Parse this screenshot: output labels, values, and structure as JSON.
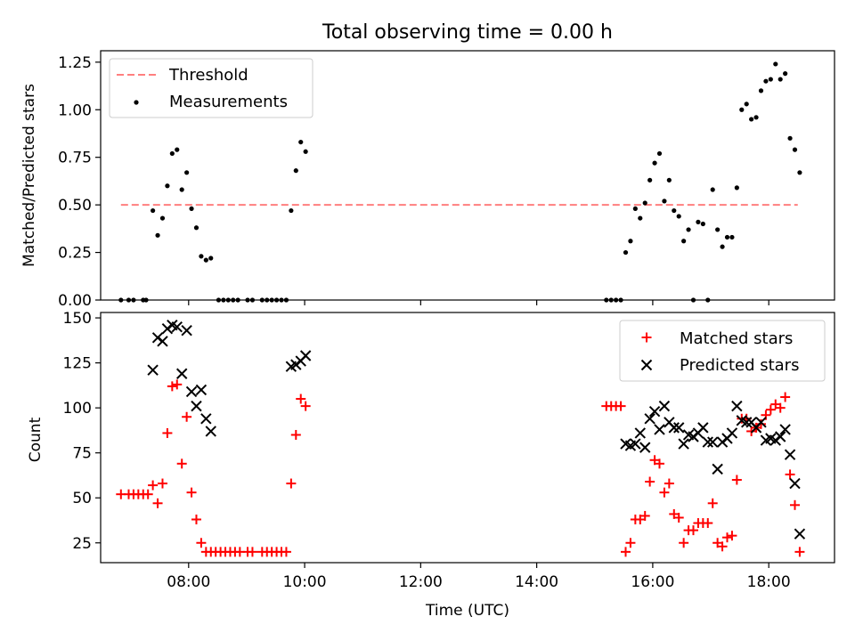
{
  "title": "Total observing time = 0.00 h",
  "colors": {
    "threshold": "#ff7f7f",
    "measurement": "#000000",
    "matched": "#ff0000",
    "predicted": "#000000",
    "axes": "#000000"
  },
  "chart_data": [
    {
      "type": "scatter",
      "x_format": "time HH:MM",
      "ylabel": "Matched/Predicted stars",
      "xlim": [
        "06:29",
        "19:08"
      ],
      "ylim": [
        0,
        1.31
      ],
      "yticks": [
        0.0,
        0.25,
        0.5,
        0.75,
        1.0,
        1.25
      ],
      "ytick_labels": [
        "0.00",
        "0.25",
        "0.50",
        "0.75",
        "1.00",
        "1.25"
      ],
      "xticks": [
        "08:00",
        "10:00",
        "12:00",
        "14:00",
        "16:00",
        "18:00"
      ],
      "legend_position": "top-left",
      "legend": [
        "Threshold",
        "Measurements"
      ],
      "threshold": {
        "name": "Threshold",
        "y": 0.5,
        "x_range": [
          "06:50",
          "18:30"
        ],
        "style": "dashed"
      },
      "series": [
        {
          "name": "Measurements",
          "marker": "dot",
          "points": [
            [
              "06:50",
              0
            ],
            [
              "06:58",
              0
            ],
            [
              "07:03",
              0
            ],
            [
              "07:13",
              0
            ],
            [
              "07:16",
              0
            ],
            [
              "07:23",
              0.47
            ],
            [
              "07:28",
              0.34
            ],
            [
              "07:33",
              0.43
            ],
            [
              "07:38",
              0.6
            ],
            [
              "07:43",
              0.77
            ],
            [
              "07:48",
              0.79
            ],
            [
              "07:53",
              0.58
            ],
            [
              "07:58",
              0.67
            ],
            [
              "08:03",
              0.48
            ],
            [
              "08:08",
              0.38
            ],
            [
              "08:13",
              0.23
            ],
            [
              "08:18",
              0.21
            ],
            [
              "08:23",
              0.22
            ],
            [
              "08:31",
              0
            ],
            [
              "08:36",
              0
            ],
            [
              "08:41",
              0
            ],
            [
              "08:46",
              0
            ],
            [
              "08:51",
              0
            ],
            [
              "09:01",
              0
            ],
            [
              "09:06",
              0
            ],
            [
              "09:16",
              0
            ],
            [
              "09:21",
              0
            ],
            [
              "09:26",
              0
            ],
            [
              "09:31",
              0
            ],
            [
              "09:36",
              0
            ],
            [
              "09:41",
              0
            ],
            [
              "09:46",
              0.47
            ],
            [
              "09:51",
              0.68
            ],
            [
              "09:56",
              0.83
            ],
            [
              "10:01",
              0.78
            ],
            [
              "15:12",
              0
            ],
            [
              "15:17",
              0
            ],
            [
              "15:22",
              0
            ],
            [
              "15:27",
              0
            ],
            [
              "15:32",
              0.25
            ],
            [
              "15:37",
              0.31
            ],
            [
              "15:42",
              0.48
            ],
            [
              "15:47",
              0.43
            ],
            [
              "15:52",
              0.51
            ],
            [
              "15:57",
              0.63
            ],
            [
              "16:02",
              0.72
            ],
            [
              "16:07",
              0.77
            ],
            [
              "16:12",
              0.52
            ],
            [
              "16:17",
              0.63
            ],
            [
              "16:22",
              0.47
            ],
            [
              "16:27",
              0.44
            ],
            [
              "16:32",
              0.31
            ],
            [
              "16:37",
              0.37
            ],
            [
              "16:42",
              0
            ],
            [
              "16:47",
              0.41
            ],
            [
              "16:52",
              0.4
            ],
            [
              "16:57",
              0
            ],
            [
              "17:02",
              0.58
            ],
            [
              "17:07",
              0.37
            ],
            [
              "17:12",
              0.28
            ],
            [
              "17:17",
              0.33
            ],
            [
              "17:22",
              0.33
            ],
            [
              "17:27",
              0.59
            ],
            [
              "17:32",
              1.0
            ],
            [
              "17:37",
              1.03
            ],
            [
              "17:42",
              0.95
            ],
            [
              "17:47",
              0.96
            ],
            [
              "17:52",
              1.1
            ],
            [
              "17:57",
              1.15
            ],
            [
              "18:02",
              1.16
            ],
            [
              "18:07",
              1.24
            ],
            [
              "18:12",
              1.16
            ],
            [
              "18:17",
              1.19
            ],
            [
              "18:22",
              0.85
            ],
            [
              "18:27",
              0.79
            ],
            [
              "18:32",
              0.67
            ]
          ]
        }
      ]
    },
    {
      "type": "scatter",
      "x_format": "time HH:MM",
      "xlabel": "Time (UTC)",
      "ylabel": "Count",
      "xlim": [
        "06:29",
        "19:08"
      ],
      "ylim": [
        14,
        153
      ],
      "yticks": [
        25,
        50,
        75,
        100,
        125,
        150
      ],
      "ytick_labels": [
        "25",
        "50",
        "75",
        "100",
        "125",
        "150"
      ],
      "xticks": [
        "08:00",
        "10:00",
        "12:00",
        "14:00",
        "16:00",
        "18:00"
      ],
      "xtick_labels": [
        "08:00",
        "10:00",
        "12:00",
        "14:00",
        "16:00",
        "18:00"
      ],
      "legend_position": "top-right",
      "legend": [
        "Matched stars",
        "Predicted stars"
      ],
      "series": [
        {
          "name": "Matched stars",
          "marker": "plus",
          "points": [
            [
              "06:50",
              52
            ],
            [
              "06:58",
              52
            ],
            [
              "07:03",
              52
            ],
            [
              "07:08",
              52
            ],
            [
              "07:13",
              52
            ],
            [
              "07:18",
              52
            ],
            [
              "07:23",
              57
            ],
            [
              "07:28",
              47
            ],
            [
              "07:33",
              58
            ],
            [
              "07:38",
              86
            ],
            [
              "07:43",
              112
            ],
            [
              "07:48",
              113
            ],
            [
              "07:53",
              69
            ],
            [
              "07:58",
              95
            ],
            [
              "08:03",
              53
            ],
            [
              "08:08",
              38
            ],
            [
              "08:13",
              25
            ],
            [
              "08:18",
              20
            ],
            [
              "08:23",
              20
            ],
            [
              "08:28",
              20
            ],
            [
              "08:33",
              20
            ],
            [
              "08:38",
              20
            ],
            [
              "08:43",
              20
            ],
            [
              "08:48",
              20
            ],
            [
              "08:53",
              20
            ],
            [
              "09:01",
              20
            ],
            [
              "09:06",
              20
            ],
            [
              "09:16",
              20
            ],
            [
              "09:21",
              20
            ],
            [
              "09:26",
              20
            ],
            [
              "09:31",
              20
            ],
            [
              "09:36",
              20
            ],
            [
              "09:41",
              20
            ],
            [
              "09:46",
              58
            ],
            [
              "09:51",
              85
            ],
            [
              "09:56",
              105
            ],
            [
              "10:01",
              101
            ],
            [
              "15:12",
              101
            ],
            [
              "15:17",
              101
            ],
            [
              "15:22",
              101
            ],
            [
              "15:27",
              101
            ],
            [
              "15:32",
              20
            ],
            [
              "15:37",
              25
            ],
            [
              "15:42",
              38
            ],
            [
              "15:47",
              38
            ],
            [
              "15:52",
              40
            ],
            [
              "15:57",
              59
            ],
            [
              "16:02",
              71
            ],
            [
              "16:07",
              69
            ],
            [
              "16:12",
              53
            ],
            [
              "16:17",
              58
            ],
            [
              "16:22",
              41
            ],
            [
              "16:27",
              39
            ],
            [
              "16:32",
              25
            ],
            [
              "16:37",
              32
            ],
            [
              "16:42",
              32
            ],
            [
              "16:47",
              36
            ],
            [
              "16:52",
              36
            ],
            [
              "16:57",
              36
            ],
            [
              "17:02",
              47
            ],
            [
              "17:07",
              25
            ],
            [
              "17:12",
              23
            ],
            [
              "17:17",
              28
            ],
            [
              "17:22",
              29
            ],
            [
              "17:27",
              60
            ],
            [
              "17:32",
              94
            ],
            [
              "17:37",
              94
            ],
            [
              "17:42",
              87
            ],
            [
              "17:47",
              89
            ],
            [
              "17:52",
              91
            ],
            [
              "17:57",
              96
            ],
            [
              "18:02",
              99
            ],
            [
              "18:07",
              102
            ],
            [
              "18:12",
              100
            ],
            [
              "18:17",
              106
            ],
            [
              "18:22",
              63
            ],
            [
              "18:27",
              46
            ],
            [
              "18:32",
              20
            ]
          ]
        },
        {
          "name": "Predicted stars",
          "marker": "x",
          "points": [
            [
              "07:23",
              121
            ],
            [
              "07:28",
              139
            ],
            [
              "07:33",
              137
            ],
            [
              "07:38",
              144
            ],
            [
              "07:43",
              146
            ],
            [
              "07:48",
              145
            ],
            [
              "07:53",
              119
            ],
            [
              "07:58",
              143
            ],
            [
              "08:03",
              109
            ],
            [
              "08:08",
              101
            ],
            [
              "08:13",
              110
            ],
            [
              "08:18",
              94
            ],
            [
              "08:23",
              87
            ],
            [
              "09:46",
              123
            ],
            [
              "09:51",
              124
            ],
            [
              "09:56",
              126
            ],
            [
              "10:01",
              129
            ],
            [
              "15:32",
              80
            ],
            [
              "15:37",
              79
            ],
            [
              "15:42",
              80
            ],
            [
              "15:47",
              86
            ],
            [
              "15:52",
              78
            ],
            [
              "15:57",
              94
            ],
            [
              "16:02",
              98
            ],
            [
              "16:07",
              88
            ],
            [
              "16:12",
              101
            ],
            [
              "16:17",
              92
            ],
            [
              "16:22",
              89
            ],
            [
              "16:27",
              89
            ],
            [
              "16:32",
              80
            ],
            [
              "16:37",
              85
            ],
            [
              "16:42",
              84
            ],
            [
              "16:47",
              86
            ],
            [
              "16:52",
              89
            ],
            [
              "16:57",
              81
            ],
            [
              "17:02",
              81
            ],
            [
              "17:07",
              66
            ],
            [
              "17:12",
              81
            ],
            [
              "17:17",
              83
            ],
            [
              "17:22",
              86
            ],
            [
              "17:27",
              101
            ],
            [
              "17:32",
              93
            ],
            [
              "17:37",
              92
            ],
            [
              "17:42",
              92
            ],
            [
              "17:47",
              89
            ],
            [
              "17:52",
              92
            ],
            [
              "17:57",
              82
            ],
            [
              "18:02",
              83
            ],
            [
              "18:07",
              82
            ],
            [
              "18:12",
              84
            ],
            [
              "18:17",
              88
            ],
            [
              "18:22",
              74
            ],
            [
              "18:27",
              58
            ],
            [
              "18:32",
              30
            ]
          ]
        }
      ]
    }
  ]
}
